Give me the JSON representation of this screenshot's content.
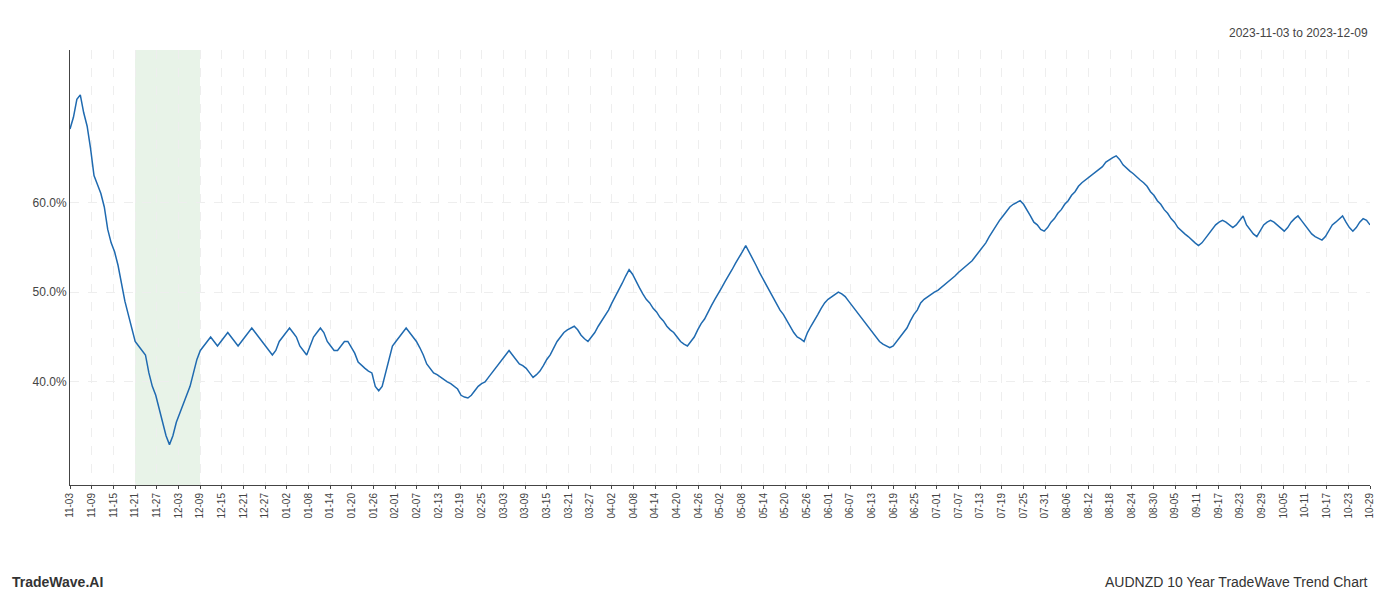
{
  "chart_data": {
    "type": "line",
    "title": "AUDNZD 10 Year TradeWave Trend Chart",
    "subtitle": "2023-11-03 to 2023-12-09",
    "annotations": [
      "TradeWave.AI"
    ],
    "color": "#1f6ab0",
    "grid": true,
    "shade": {
      "from": 18.95,
      "to": 37.9,
      "color": "#d6ead6"
    },
    "xlim": [
      0,
      379
    ],
    "xticks": [
      {
        "value": 0,
        "label": "11-03"
      },
      {
        "value": 6.316667,
        "label": "11-09"
      },
      {
        "value": 12.633333,
        "label": "11-15"
      },
      {
        "value": 18.95,
        "label": "11-21"
      },
      {
        "value": 25.266667,
        "label": "11-27"
      },
      {
        "value": 31.583333,
        "label": "12-03"
      },
      {
        "value": 37.9,
        "label": "12-09"
      },
      {
        "value": 44.216667,
        "label": "12-15"
      },
      {
        "value": 50.533333,
        "label": "12-21"
      },
      {
        "value": 56.85,
        "label": "12-27"
      },
      {
        "value": 63.166667,
        "label": "01-02"
      },
      {
        "value": 69.483333,
        "label": "01-08"
      },
      {
        "value": 75.8,
        "label": "01-14"
      },
      {
        "value": 82.116667,
        "label": "01-20"
      },
      {
        "value": 88.433333,
        "label": "01-26"
      },
      {
        "value": 94.75,
        "label": "02-01"
      },
      {
        "value": 101.066667,
        "label": "02-07"
      },
      {
        "value": 107.383333,
        "label": "02-13"
      },
      {
        "value": 113.7,
        "label": "02-19"
      },
      {
        "value": 120.016667,
        "label": "02-25"
      },
      {
        "value": 126.333333,
        "label": "03-03"
      },
      {
        "value": 132.65,
        "label": "03-09"
      },
      {
        "value": 138.966667,
        "label": "03-15"
      },
      {
        "value": 145.283333,
        "label": "03-21"
      },
      {
        "value": 151.6,
        "label": "03-27"
      },
      {
        "value": 157.916667,
        "label": "04-02"
      },
      {
        "value": 164.233333,
        "label": "04-08"
      },
      {
        "value": 170.55,
        "label": "04-14"
      },
      {
        "value": 176.866667,
        "label": "04-20"
      },
      {
        "value": 183.183333,
        "label": "04-26"
      },
      {
        "value": 189.5,
        "label": "05-02"
      },
      {
        "value": 195.816667,
        "label": "05-08"
      },
      {
        "value": 202.133333,
        "label": "05-14"
      },
      {
        "value": 208.45,
        "label": "05-20"
      },
      {
        "value": 214.766667,
        "label": "05-26"
      },
      {
        "value": 221.083333,
        "label": "06-01"
      },
      {
        "value": 227.4,
        "label": "06-07"
      },
      {
        "value": 233.716667,
        "label": "06-13"
      },
      {
        "value": 240.033333,
        "label": "06-19"
      },
      {
        "value": 246.35,
        "label": "06-25"
      },
      {
        "value": 252.666667,
        "label": "07-01"
      },
      {
        "value": 258.983333,
        "label": "07-07"
      },
      {
        "value": 265.3,
        "label": "07-13"
      },
      {
        "value": 271.616667,
        "label": "07-19"
      },
      {
        "value": 277.933333,
        "label": "07-25"
      },
      {
        "value": 284.25,
        "label": "07-31"
      },
      {
        "value": 290.566667,
        "label": "08-06"
      },
      {
        "value": 296.883333,
        "label": "08-12"
      },
      {
        "value": 303.2,
        "label": "08-18"
      },
      {
        "value": 309.516667,
        "label": "08-24"
      },
      {
        "value": 315.833333,
        "label": "08-30"
      },
      {
        "value": 322.15,
        "label": "09-05"
      },
      {
        "value": 328.466667,
        "label": "09-11"
      },
      {
        "value": 334.783333,
        "label": "09-17"
      },
      {
        "value": 341.1,
        "label": "09-23"
      },
      {
        "value": 347.416667,
        "label": "09-29"
      },
      {
        "value": 353.733333,
        "label": "10-05"
      },
      {
        "value": 360.05,
        "label": "10-11"
      },
      {
        "value": 366.366667,
        "label": "10-17"
      },
      {
        "value": 372.683333,
        "label": "10-23"
      },
      {
        "value": 379,
        "label": "10-29"
      }
    ],
    "ylim": [
      0.285,
      0.77
    ],
    "yticks": [
      {
        "value": 0.4,
        "label": "40.0%"
      },
      {
        "value": 0.5,
        "label": "50.0%"
      },
      {
        "value": 0.6,
        "label": "60.0%"
      }
    ],
    "values": [
      0.682,
      0.695,
      0.715,
      0.72,
      0.7,
      0.685,
      0.66,
      0.63,
      0.62,
      0.61,
      0.595,
      0.57,
      0.555,
      0.545,
      0.53,
      0.51,
      0.49,
      0.475,
      0.46,
      0.445,
      0.44,
      0.435,
      0.43,
      0.41,
      0.395,
      0.385,
      0.37,
      0.355,
      0.34,
      0.33,
      0.34,
      0.355,
      0.365,
      0.375,
      0.385,
      0.395,
      0.41,
      0.425,
      0.435,
      0.44,
      0.445,
      0.45,
      0.445,
      0.44,
      0.445,
      0.45,
      0.455,
      0.45,
      0.445,
      0.44,
      0.445,
      0.45,
      0.455,
      0.46,
      0.455,
      0.45,
      0.445,
      0.44,
      0.435,
      0.43,
      0.435,
      0.445,
      0.45,
      0.455,
      0.46,
      0.455,
      0.45,
      0.44,
      0.435,
      0.43,
      0.44,
      0.45,
      0.455,
      0.46,
      0.455,
      0.445,
      0.44,
      0.435,
      0.435,
      0.44,
      0.445,
      0.445,
      0.438,
      0.432,
      0.422,
      0.418,
      0.415,
      0.412,
      0.41,
      0.395,
      0.39,
      0.395,
      0.41,
      0.425,
      0.44,
      0.445,
      0.45,
      0.455,
      0.46,
      0.455,
      0.45,
      0.445,
      0.438,
      0.43,
      0.42,
      0.415,
      0.41,
      0.408,
      0.405,
      0.402,
      0.4,
      0.398,
      0.395,
      0.392,
      0.385,
      0.383,
      0.382,
      0.385,
      0.39,
      0.395,
      0.398,
      0.4,
      0.405,
      0.41,
      0.415,
      0.42,
      0.425,
      0.43,
      0.435,
      0.43,
      0.425,
      0.42,
      0.418,
      0.415,
      0.41,
      0.405,
      0.408,
      0.412,
      0.418,
      0.425,
      0.43,
      0.438,
      0.445,
      0.45,
      0.455,
      0.458,
      0.46,
      0.462,
      0.458,
      0.452,
      0.448,
      0.445,
      0.45,
      0.455,
      0.462,
      0.468,
      0.475,
      0.48,
      0.488,
      0.495,
      0.502,
      0.51,
      0.518,
      0.525,
      0.52,
      0.512,
      0.505,
      0.498,
      0.492,
      0.488,
      0.482,
      0.478,
      0.472,
      0.468,
      0.462,
      0.458,
      0.455,
      0.45,
      0.445,
      0.442,
      0.44,
      0.445,
      0.45,
      0.458,
      0.465,
      0.47,
      0.478,
      0.485,
      0.492,
      0.498,
      0.505,
      0.512,
      0.518,
      0.525,
      0.532,
      0.538,
      0.545,
      0.552,
      0.545,
      0.538,
      0.53,
      0.522,
      0.515,
      0.508,
      0.502,
      0.495,
      0.488,
      0.48,
      0.475,
      0.468,
      0.462,
      0.455,
      0.45,
      0.448,
      0.445,
      0.455,
      0.462,
      0.468,
      0.475,
      0.482,
      0.488,
      0.492,
      0.495,
      0.498,
      0.5,
      0.498,
      0.495,
      0.49,
      0.485,
      0.48,
      0.475,
      0.47,
      0.465,
      0.46,
      0.455,
      0.45,
      0.445,
      0.442,
      0.44,
      0.438,
      0.44,
      0.445,
      0.45,
      0.455,
      0.46,
      0.468,
      0.475,
      0.48,
      0.488,
      0.492,
      0.495,
      0.498,
      0.5,
      0.502,
      0.505,
      0.508,
      0.512,
      0.515,
      0.518,
      0.522,
      0.525,
      0.528,
      0.532,
      0.535,
      0.54,
      0.545,
      0.55,
      0.555,
      0.562,
      0.568,
      0.575,
      0.58,
      0.585,
      0.59,
      0.595,
      0.598,
      0.6,
      0.602,
      0.598,
      0.592,
      0.585,
      0.578,
      0.575,
      0.57,
      0.568,
      0.572,
      0.578,
      0.582,
      0.588,
      0.592,
      0.598,
      0.602,
      0.608,
      0.612,
      0.618,
      0.622,
      0.625,
      0.628,
      0.632,
      0.635,
      0.638,
      0.64,
      0.645,
      0.648,
      0.65,
      0.652,
      0.648,
      0.642,
      0.638,
      0.635,
      0.632,
      0.628,
      0.625,
      0.622,
      0.618,
      0.612,
      0.608,
      0.602,
      0.598,
      0.592,
      0.588,
      0.582,
      0.578,
      0.572,
      0.568,
      0.565,
      0.562,
      0.558,
      0.555,
      0.552,
      0.555,
      0.56,
      0.565,
      0.57,
      0.575,
      0.578,
      0.58,
      0.578,
      0.575,
      0.572,
      0.575,
      0.58,
      0.585,
      0.575,
      0.57,
      0.565,
      0.562,
      0.568,
      0.575,
      0.578,
      0.58,
      0.578,
      0.575,
      0.572,
      0.568,
      0.572,
      0.578,
      0.582,
      0.585,
      0.58,
      0.575,
      0.57,
      0.565,
      0.562,
      0.56,
      0.558,
      0.562,
      0.568,
      0.575,
      0.578,
      0.582,
      0.585,
      0.578,
      0.572,
      0.568,
      0.572,
      0.578,
      0.582,
      0.58,
      0.575
    ]
  }
}
